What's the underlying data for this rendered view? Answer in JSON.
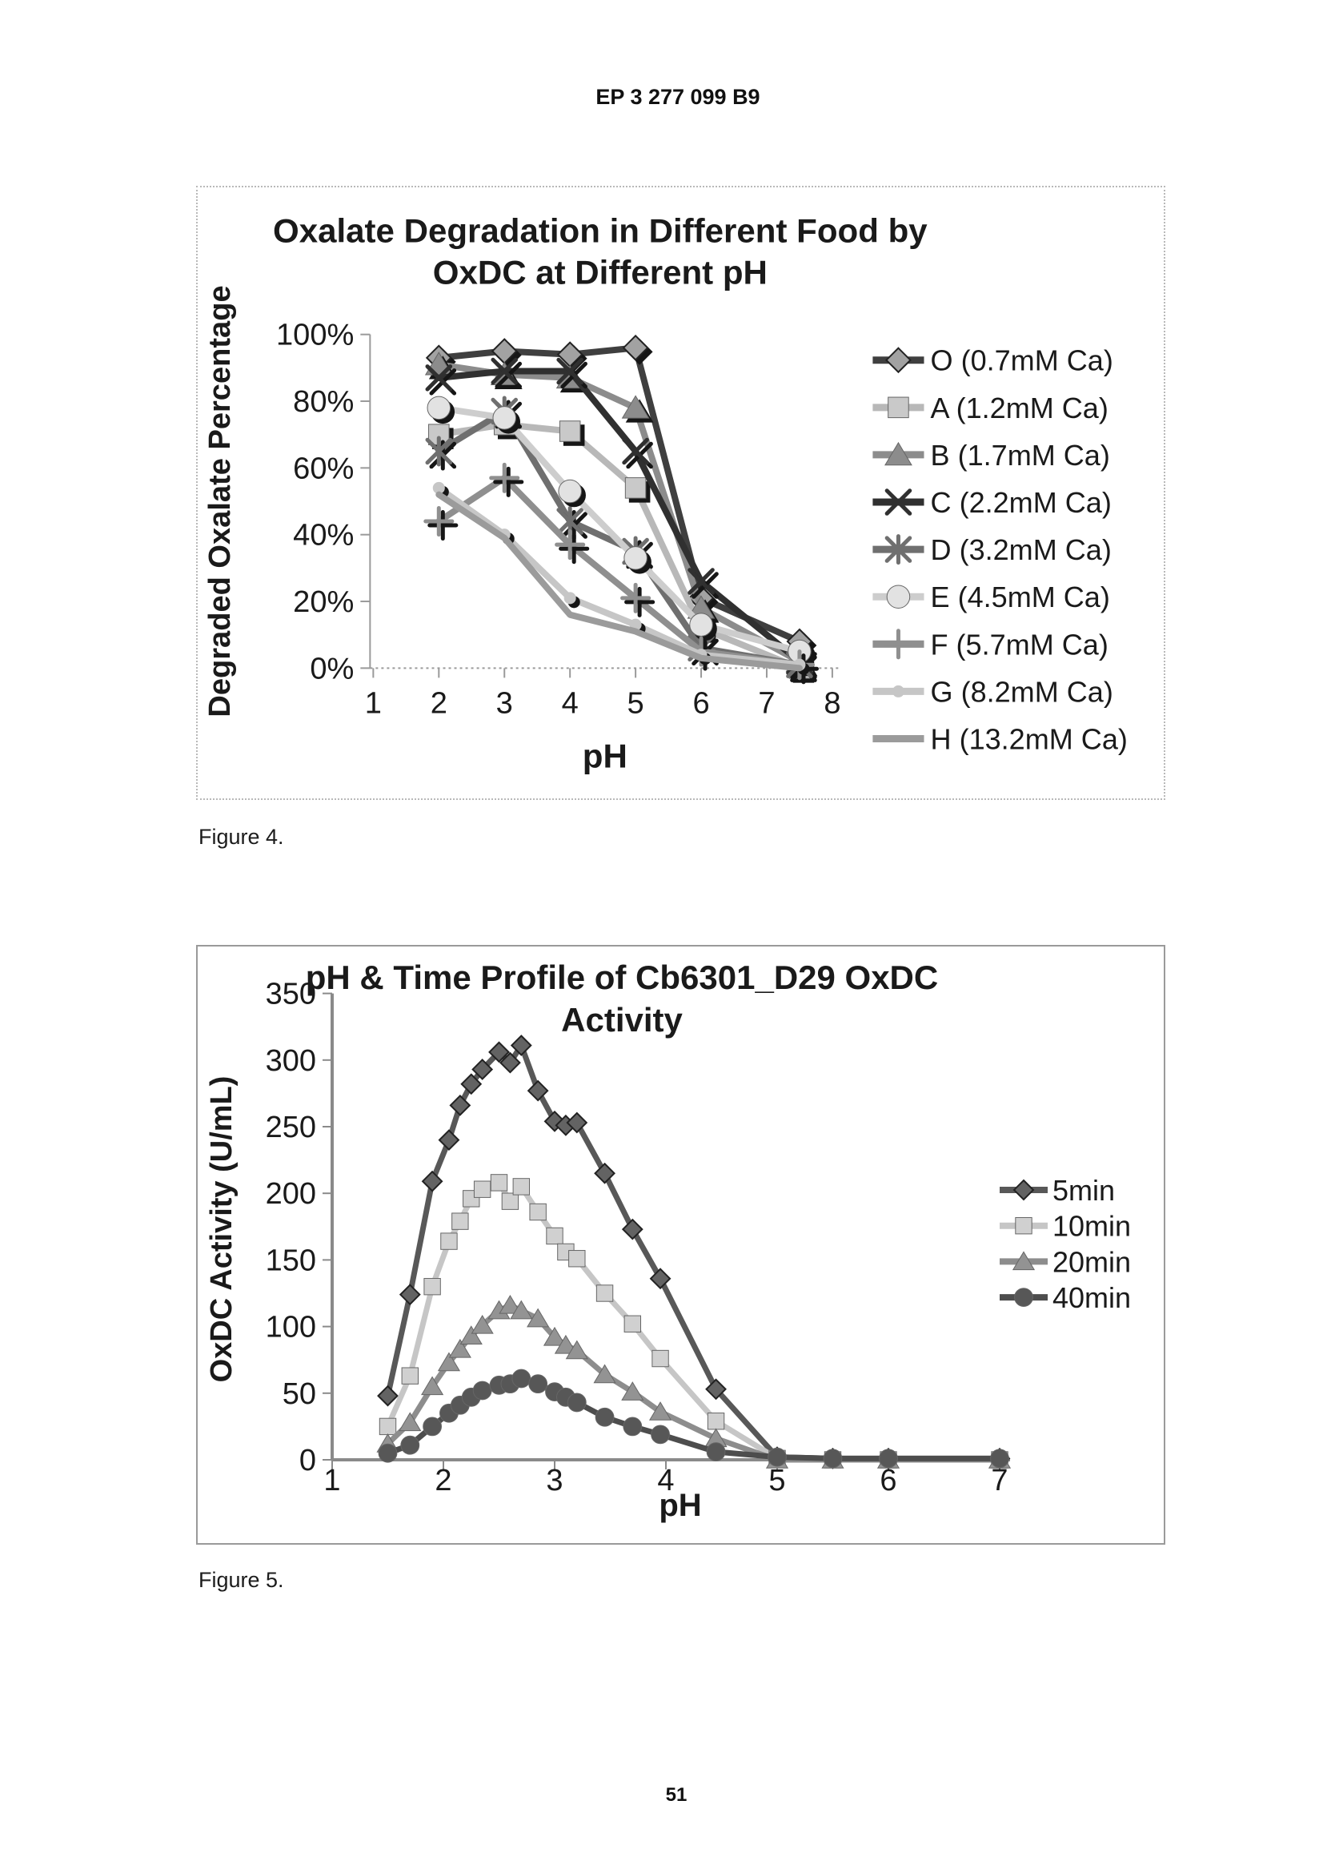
{
  "page": {
    "header": "EP 3 277 099 B9",
    "figure4_caption": "Figure 4.",
    "figure5_caption": "Figure 5.",
    "page_number": "51"
  },
  "chart_data": [
    {
      "type": "line",
      "title_lines": [
        "Oxalate Degradation in Different Food by",
        "OxDC at Different pH"
      ],
      "xlabel": "pH",
      "ylabel": "Degraded Oxalate Percentage",
      "xlim": [
        1,
        8
      ],
      "ylim": [
        0,
        100
      ],
      "x_ticks": [
        1,
        2,
        3,
        4,
        5,
        6,
        7,
        8
      ],
      "y_ticks": [
        {
          "v": 0,
          "label": "0%"
        },
        {
          "v": 20,
          "label": "20%"
        },
        {
          "v": 40,
          "label": "40%"
        },
        {
          "v": 60,
          "label": "60%"
        },
        {
          "v": 80,
          "label": "80%"
        },
        {
          "v": 100,
          "label": "100%"
        }
      ],
      "grid": false,
      "legend_position": "right",
      "x": [
        2,
        3,
        4,
        5,
        6,
        7.5
      ],
      "series": [
        {
          "name": "O (0.7mM Ca)",
          "marker": "diamond",
          "color": "#3f3f3f",
          "fill": "#a2a2a2",
          "values": [
            93,
            95,
            94,
            96,
            21,
            8
          ]
        },
        {
          "name": "A (1.2mM Ca)",
          "marker": "square",
          "color": "#b8b8b8",
          "fill": "#c9c9c9",
          "values": [
            70,
            73,
            71,
            54,
            12,
            0
          ]
        },
        {
          "name": "B (1.7mM Ca)",
          "marker": "triangle",
          "color": "#8c8c8c",
          "fill": "#8c8c8c",
          "values": [
            91,
            88,
            87,
            78,
            18,
            2
          ]
        },
        {
          "name": "C (2.2mM Ca)",
          "marker": "x",
          "color": "#303030",
          "fill": "#303030",
          "values": [
            87,
            89,
            89,
            65,
            26,
            2
          ]
        },
        {
          "name": "D (3.2mM Ca)",
          "marker": "asterisk",
          "color": "#6f6f6f",
          "fill": "#6f6f6f",
          "values": [
            65,
            77,
            44,
            35,
            6,
            1
          ]
        },
        {
          "name": "E (4.5mM Ca)",
          "marker": "circle",
          "color": "#cdcdcd",
          "fill": "#e2e2e2",
          "values": [
            78,
            75,
            53,
            33,
            13,
            5
          ]
        },
        {
          "name": "F (5.7mM Ca)",
          "marker": "plus",
          "color": "#8f8f8f",
          "fill": "#8f8f8f",
          "values": [
            44,
            57,
            37,
            21,
            5,
            1
          ]
        },
        {
          "name": "G (8.2mM Ca)",
          "marker": "dot",
          "color": "#c6c6c6",
          "fill": "#c6c6c6",
          "values": [
            54,
            40,
            21,
            13,
            4,
            1
          ]
        },
        {
          "name": "H (13.2mM Ca)",
          "marker": "none",
          "color": "#9b9b9b",
          "fill": "#9b9b9b",
          "values": [
            52,
            39,
            16,
            11,
            3,
            0
          ]
        }
      ]
    },
    {
      "type": "line",
      "title_lines": [
        "pH & Time Profile of Cb6301_D29 OxDC",
        "Activity"
      ],
      "xlabel": "pH",
      "ylabel": "OxDC Activity (U/mL)",
      "xlim": [
        1,
        7.25
      ],
      "ylim": [
        0,
        350
      ],
      "x_ticks": [
        1,
        2,
        3,
        4,
        5,
        6,
        7
      ],
      "y_ticks": [
        {
          "v": 0,
          "label": "0"
        },
        {
          "v": 50,
          "label": "50"
        },
        {
          "v": 100,
          "label": "100"
        },
        {
          "v": 150,
          "label": "150"
        },
        {
          "v": 200,
          "label": "200"
        },
        {
          "v": 250,
          "label": "250"
        },
        {
          "v": 300,
          "label": "300"
        },
        {
          "v": 350,
          "label": "350"
        }
      ],
      "grid": false,
      "legend_position": "right",
      "x": [
        1.5,
        1.7,
        1.9,
        2.05,
        2.15,
        2.25,
        2.35,
        2.5,
        2.6,
        2.7,
        2.85,
        3.0,
        3.1,
        3.2,
        3.45,
        3.7,
        3.95,
        4.45,
        5.0,
        5.5,
        6.0,
        7.0
      ],
      "series": [
        {
          "name": "5min",
          "marker": "diamond",
          "color": "#585858",
          "fill": "#636363",
          "values": [
            48,
            124,
            209,
            240,
            266,
            282,
            293,
            306,
            298,
            311,
            277,
            254,
            251,
            253,
            215,
            173,
            136,
            53,
            2,
            1,
            1,
            1
          ]
        },
        {
          "name": "10min",
          "marker": "square",
          "color": "#c6c6c6",
          "fill": "#d0d0d0",
          "values": [
            25,
            63,
            130,
            164,
            179,
            196,
            203,
            208,
            194,
            205,
            186,
            168,
            156,
            151,
            125,
            102,
            76,
            29,
            1,
            0,
            0,
            0
          ]
        },
        {
          "name": "20min",
          "marker": "triangle",
          "color": "#8d8d8d",
          "fill": "#939393",
          "values": [
            12,
            28,
            55,
            73,
            83,
            93,
            101,
            112,
            116,
            112,
            106,
            92,
            86,
            82,
            64,
            51,
            36,
            16,
            0,
            0,
            0,
            0
          ]
        },
        {
          "name": "40min",
          "marker": "circle",
          "color": "#4d4d4d",
          "fill": "#575757",
          "values": [
            5,
            11,
            25,
            35,
            41,
            47,
            52,
            56,
            57,
            61,
            57,
            51,
            47,
            43,
            32,
            25,
            19,
            6,
            2,
            1,
            1,
            1
          ]
        }
      ]
    }
  ]
}
